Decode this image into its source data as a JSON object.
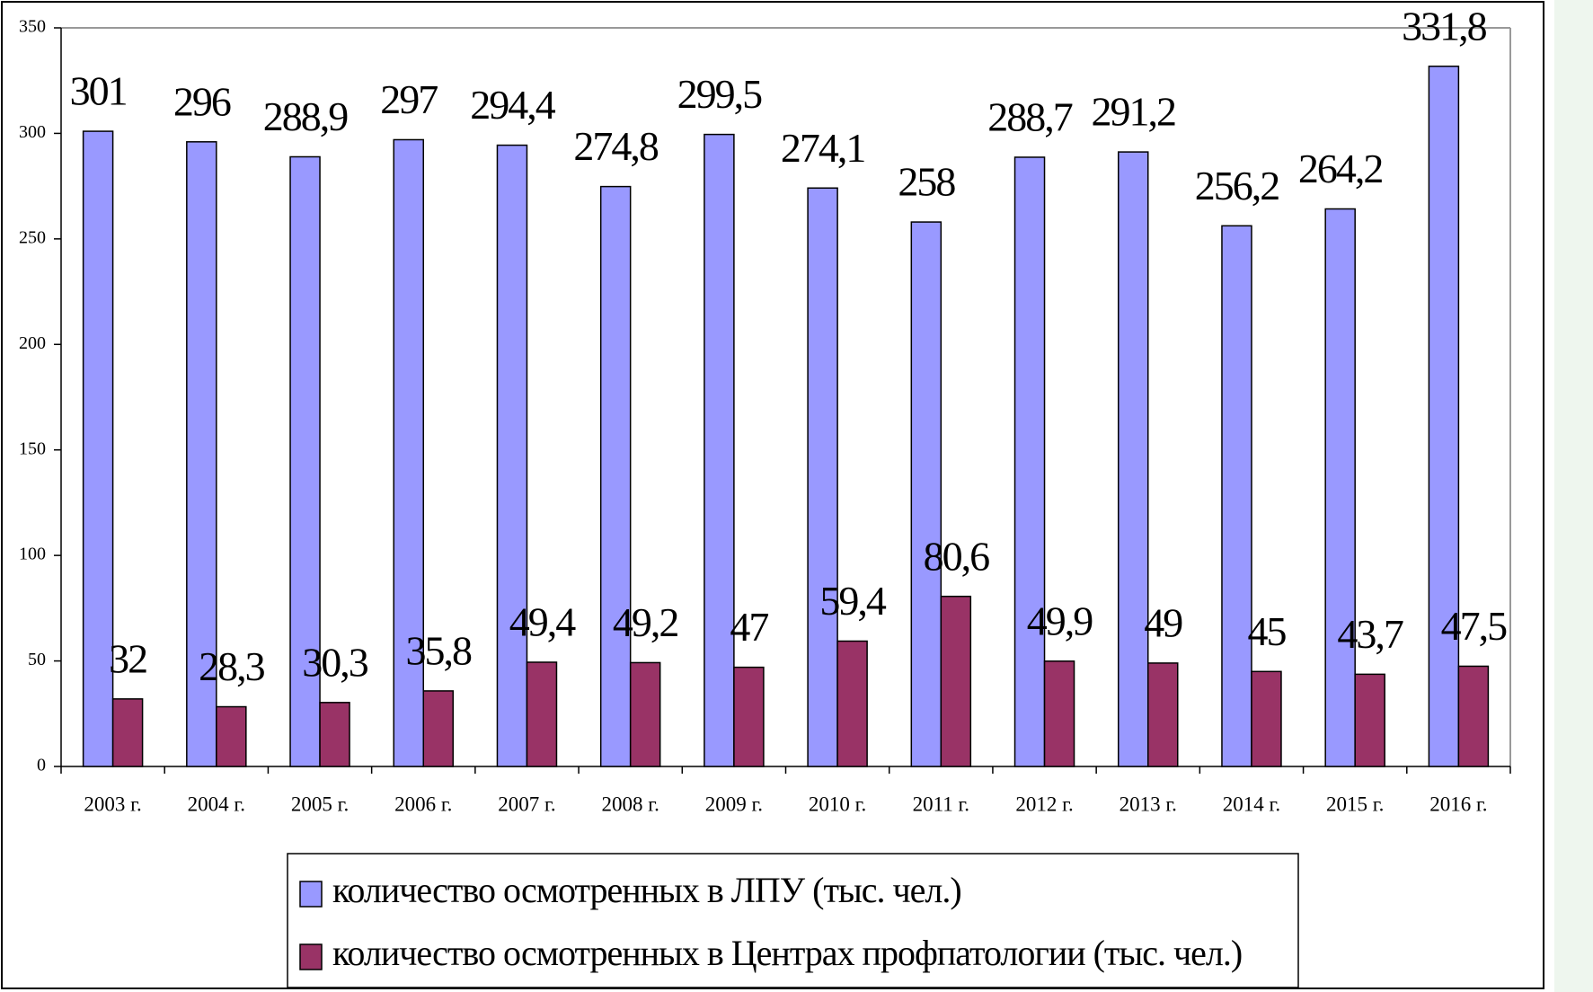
{
  "chart_data": {
    "type": "bar",
    "categories": [
      "2003 г.",
      "2004 г.",
      "2005 г.",
      "2006 г.",
      "2007 г.",
      "2008 г.",
      "2009 г.",
      "2010 г.",
      "2011 г.",
      "2012 г.",
      "2013 г.",
      "2014 г.",
      "2015 г.",
      "2016 г."
    ],
    "series": [
      {
        "name": "количество осмотренных в ЛПУ (тыс. чел.)",
        "color": "#9999ff",
        "values": [
          301,
          296,
          288.9,
          297,
          294.4,
          274.8,
          299.5,
          274.1,
          258,
          288.7,
          291.2,
          256.2,
          264.2,
          331.8
        ],
        "value_labels": [
          "301",
          "296",
          "288,9",
          "297",
          "294,4",
          "274,8",
          "299,5",
          "274,1",
          "258",
          "288,7",
          "291,2",
          "256,2",
          "264,2",
          "331,8"
        ]
      },
      {
        "name": "количество осмотренных в Центрах профпатологии (тыс. чел.)",
        "color": "#993366",
        "values": [
          32,
          28.3,
          30.3,
          35.8,
          49.4,
          49.2,
          47,
          59.4,
          80.6,
          49.9,
          49,
          45,
          43.7,
          47.5
        ],
        "value_labels": [
          "32",
          "28,3",
          "30,3",
          "35,8",
          "49,4",
          "49,2",
          "47",
          "59,4",
          "80,6",
          "49,9",
          "49",
          "45",
          "43,7",
          "47,5"
        ]
      }
    ],
    "ylim": [
      0,
      350
    ],
    "yticks": [
      0,
      50,
      100,
      150,
      200,
      250,
      300,
      350
    ],
    "grid": false
  }
}
